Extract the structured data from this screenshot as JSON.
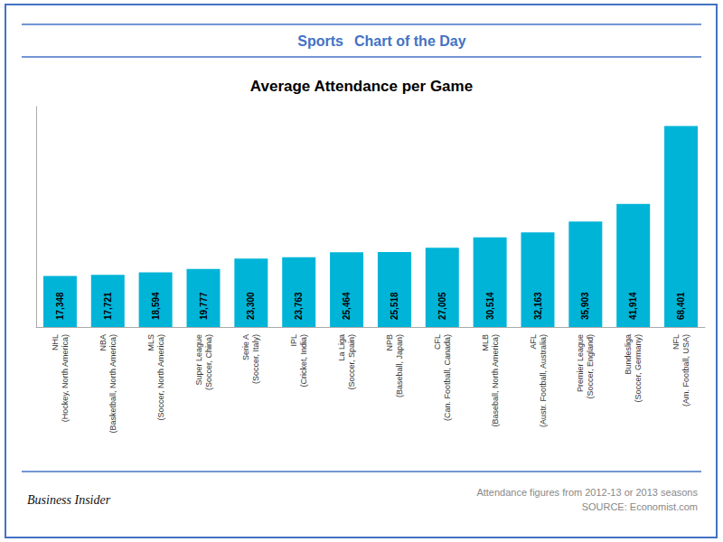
{
  "chart_data": {
    "type": "bar",
    "title": "Average Attendance per Game",
    "categories": [
      "NHL\n(Hockey, North America)",
      "NBA\n(Basketball, North America)",
      "MLS\n(Soccer, North America)",
      "Super League\n(Soccer, China)",
      "Serie A\n(Soccer, Italy)",
      "IPL\n(Cricket, India)",
      "La Liga\n(Soccer, Spain)",
      "NPB\n(Baseball, Japan)",
      "CFL\n(Can. Football, Canada)",
      "MLB\n(Baseball, North America)",
      "AFL\n(Austr. Football, Australia)",
      "Premier League\n(Soccer, England)",
      "Bundesliga\n(Soccer, Germany)",
      "NFL\n(Am. Football, USA)"
    ],
    "values": [
      17348,
      17721,
      18594,
      19777,
      23300,
      23763,
      25464,
      25518,
      27005,
      30514,
      32163,
      35903,
      41914,
      68401
    ],
    "value_labels": [
      "17,348",
      "17,721",
      "18,594",
      "19,777",
      "23,300",
      "23,763",
      "25,464",
      "25,518",
      "27,005",
      "30,514",
      "32,163",
      "35,903",
      "41,914",
      "68,401"
    ],
    "color": "#00b4d8",
    "ylim": [
      0,
      75000
    ],
    "tick_labels": "x",
    "grid": false,
    "annotations": [
      "Sports",
      "Chart of the Day",
      "Business Insider",
      "Attendance figures from 2012-13 or 2013 seasons\nSOURCE: Economist.com"
    ]
  }
}
